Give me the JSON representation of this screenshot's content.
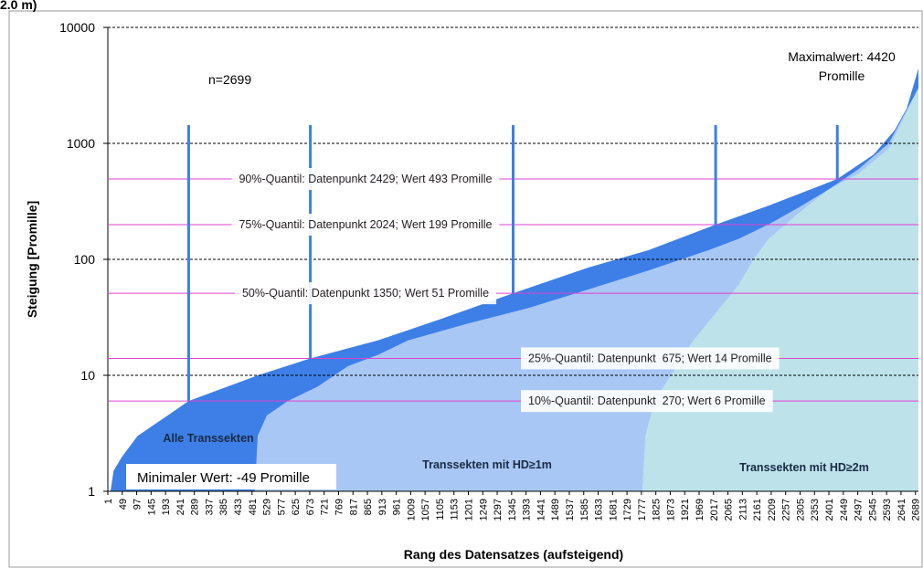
{
  "chart_data": {
    "type": "area",
    "title": "2.0 m)",
    "ylabel": "Steigung [Promille]",
    "xlabel": "Rang des Datensatzes (aufsteigend)",
    "log_y": true,
    "grid": "dashed",
    "ylim": [
      1,
      10000
    ],
    "yticks": [
      1,
      10,
      100,
      1000,
      10000
    ],
    "xlim": [
      1,
      2699
    ],
    "xticks": [
      1,
      49,
      97,
      145,
      193,
      241,
      289,
      337,
      385,
      433,
      481,
      529,
      577,
      625,
      673,
      721,
      769,
      817,
      865,
      913,
      961,
      1009,
      1057,
      1105,
      1153,
      1201,
      1249,
      1297,
      1345,
      1393,
      1441,
      1489,
      1537,
      1585,
      1633,
      1681,
      1729,
      1777,
      1825,
      1873,
      1921,
      1969,
      2017,
      2065,
      2113,
      2161,
      2209,
      2257,
      2305,
      2353,
      2401,
      2449,
      2497,
      2545,
      2593,
      2641,
      2689
    ],
    "series": [
      {
        "name": "Alle Transsekten",
        "color": "#3d7fe6",
        "x": [
          10,
          20,
          49,
          100,
          200,
          270,
          400,
          500,
          675,
          900,
          1100,
          1350,
          1600,
          1800,
          2024,
          2200,
          2429,
          2550,
          2620,
          2660,
          2699
        ],
        "values": [
          1,
          1.5,
          2,
          3,
          4.5,
          6,
          8,
          10,
          14,
          20,
          30,
          51,
          85,
          120,
          199,
          290,
          493,
          800,
          1300,
          2000,
          4420
        ]
      },
      {
        "name": "Transsekten mit HD≥1m",
        "color": "#a9c7f4",
        "x": [
          490,
          500,
          530,
          600,
          700,
          800,
          900,
          1000,
          1200,
          1400,
          1600,
          1800,
          2000,
          2100,
          2200,
          2300,
          2400,
          2500,
          2600,
          2699
        ],
        "values": [
          1,
          3,
          4.5,
          6,
          8,
          12,
          15,
          20,
          28,
          38,
          55,
          80,
          120,
          150,
          200,
          280,
          400,
          600,
          1000,
          3000
        ]
      },
      {
        "name": "Transsekten mit HD≥2m",
        "color": "#bde2ea",
        "x": [
          1780,
          1790,
          1820,
          1950,
          2100,
          2150,
          2200,
          2300,
          2400,
          2500,
          2600,
          2699
        ],
        "values": [
          1,
          3,
          6,
          20,
          60,
          100,
          150,
          250,
          400,
          550,
          900,
          3000
        ]
      }
    ],
    "quantiles": [
      {
        "label": "90%-Quantil: Datenpunkt 2429; Wert 493 Promille",
        "x": 2429,
        "value": 493
      },
      {
        "label": "75%-Quantil: Datenpunkt 2024; Wert 199 Promille",
        "x": 2024,
        "value": 199
      },
      {
        "label": "50%-Quantil: Datenpunkt 1350; Wert 51 Promille",
        "x": 1350,
        "value": 51
      },
      {
        "label": "25%-Quantil: Datenpunkt  675; Wert 14 Promille",
        "x": 675,
        "value": 14
      },
      {
        "label": "10%-Quantil: Datenpunkt  270; Wert 6 Promille",
        "x": 270,
        "value": 6
      }
    ],
    "annotations": {
      "n": "n=2699",
      "max": [
        "Maximalwert: 4420",
        "Promille"
      ],
      "min": "Minimaler Wert: -49 Promille"
    }
  }
}
